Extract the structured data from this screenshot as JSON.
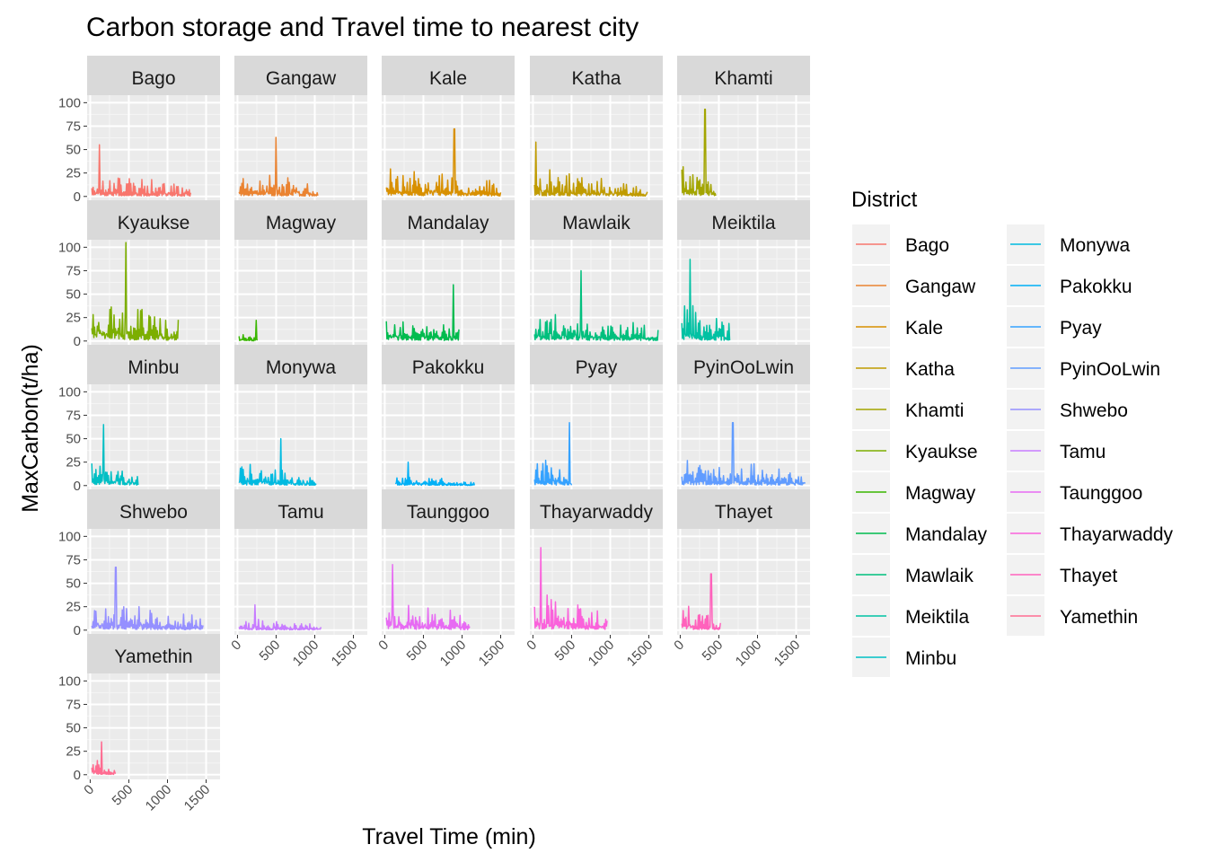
{
  "chart_data": {
    "type": "line",
    "title": "Carbon storage and Travel time to nearest city",
    "xlabel": "Travel Time (min)",
    "ylabel": "MaxCarbon(t/ha)",
    "xlim": [
      -40,
      1680
    ],
    "ylim": [
      -5,
      108
    ],
    "x_ticks": [
      0,
      500,
      1000,
      1500
    ],
    "x_tick_labels": [
      "0",
      "500",
      "1000",
      "1500"
    ],
    "y_ticks": [
      0,
      25,
      50,
      75,
      100
    ],
    "y_tick_labels": [
      "0",
      "25",
      "50",
      "75",
      "100"
    ],
    "grid": true,
    "facet_by": "District",
    "legend": {
      "title": "District",
      "position": "right",
      "columns": 2
    },
    "panels": [
      {
        "name": "Bago",
        "color": "#F8766D",
        "x_range": [
          20,
          1300
        ],
        "peak": 55,
        "peak_at": 120
      },
      {
        "name": "Gangaw",
        "color": "#EA8331",
        "x_range": [
          20,
          1040
        ],
        "peak": 63,
        "peak_at": 500
      },
      {
        "name": "Kale",
        "color": "#D89000",
        "x_range": [
          20,
          1500
        ],
        "peak": 72,
        "peak_at": 900
      },
      {
        "name": "Katha",
        "color": "#C09B00",
        "x_range": [
          20,
          1480
        ],
        "peak": 58,
        "peak_at": 40
      },
      {
        "name": "Khamti",
        "color": "#A3A500",
        "x_range": [
          20,
          460
        ],
        "peak": 93,
        "peak_at": 320
      },
      {
        "name": "Kyaukse",
        "color": "#7CAE00",
        "x_range": [
          20,
          1140
        ],
        "peak": 105,
        "peak_at": 460
      },
      {
        "name": "Magway",
        "color": "#39B600",
        "x_range": [
          20,
          260
        ],
        "peak": 22,
        "peak_at": 240
      },
      {
        "name": "Mandalay",
        "color": "#00BB4E",
        "x_range": [
          20,
          960
        ],
        "peak": 60,
        "peak_at": 890
      },
      {
        "name": "Mawlaik",
        "color": "#00BF7D",
        "x_range": [
          20,
          1620
        ],
        "peak": 75,
        "peak_at": 620
      },
      {
        "name": "Meiktila",
        "color": "#00C1A3",
        "x_range": [
          20,
          640
        ],
        "peak": 87,
        "peak_at": 130
      },
      {
        "name": "Minbu",
        "color": "#00BFC4",
        "x_range": [
          20,
          620
        ],
        "peak": 65,
        "peak_at": 170
      },
      {
        "name": "Monywa",
        "color": "#00BAE0",
        "x_range": [
          20,
          1020
        ],
        "peak": 50,
        "peak_at": 560
      },
      {
        "name": "Pakokku",
        "color": "#00B0F6",
        "x_range": [
          140,
          1160
        ],
        "peak": 25,
        "peak_at": 300
      },
      {
        "name": "Pyay",
        "color": "#35A2FF",
        "x_range": [
          20,
          500
        ],
        "peak": 67,
        "peak_at": 470
      },
      {
        "name": "PyinOoLwin",
        "color": "#619CFF",
        "x_range": [
          20,
          1620
        ],
        "peak": 67,
        "peak_at": 680
      },
      {
        "name": "Shwebo",
        "color": "#9590FF",
        "x_range": [
          20,
          1460
        ],
        "peak": 67,
        "peak_at": 330
      },
      {
        "name": "Tamu",
        "color": "#C77CFF",
        "x_range": [
          20,
          1080
        ],
        "peak": 27,
        "peak_at": 230
      },
      {
        "name": "Taunggoo",
        "color": "#E76BF3",
        "x_range": [
          20,
          1100
        ],
        "peak": 70,
        "peak_at": 100
      },
      {
        "name": "Thayarwaddy",
        "color": "#FA62DB",
        "x_range": [
          20,
          960
        ],
        "peak": 88,
        "peak_at": 100
      },
      {
        "name": "Thayet",
        "color": "#FF62BC",
        "x_range": [
          20,
          520
        ],
        "peak": 60,
        "peak_at": 400
      },
      {
        "name": "Yamethin",
        "color": "#FF6C91",
        "x_range": [
          20,
          330
        ],
        "peak": 35,
        "peak_at": 150
      }
    ]
  }
}
